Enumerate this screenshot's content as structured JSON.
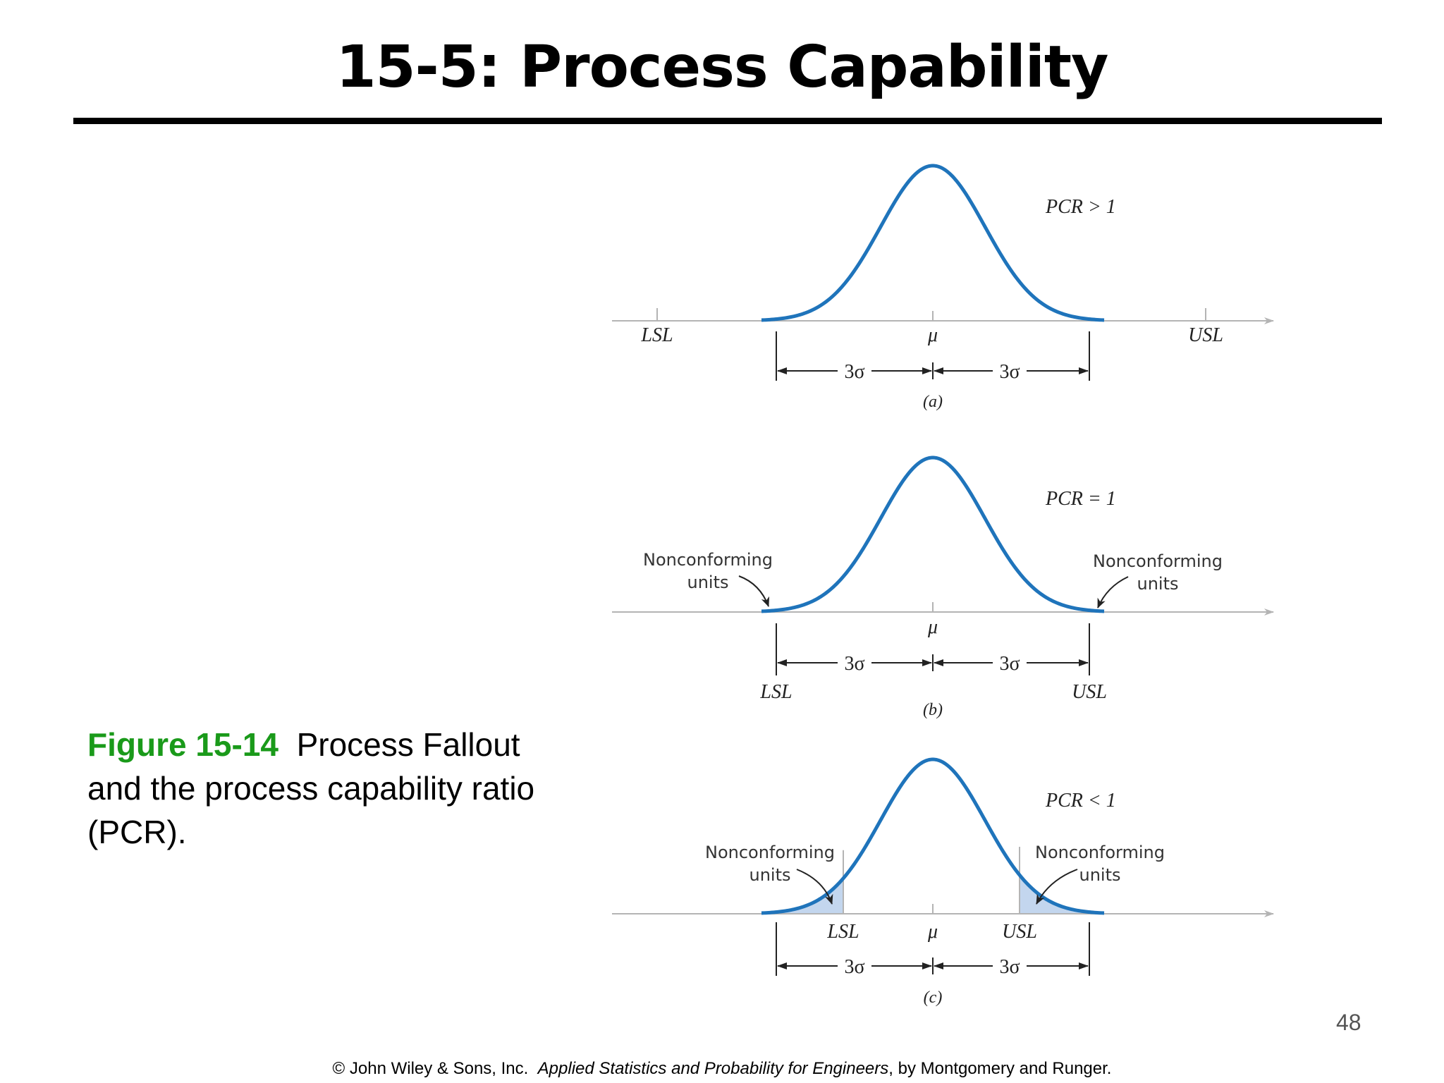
{
  "slide": {
    "title": "15-5: Process Capability",
    "caption_figure": "Figure 15-14",
    "caption_text": "Process Fallout and the process capability ratio (PCR).",
    "page_number": "48",
    "footer_copyright": "© John Wiley & Sons, Inc.",
    "footer_book": "Applied Statistics and Probability for Engineers",
    "footer_authors": ", by Montgomery and Runger."
  },
  "panels": [
    {
      "id": "a",
      "pcr_label": "PCR > 1",
      "lsl": "LSL",
      "usl": "USL",
      "mu": "μ",
      "sigma_left": "3σ",
      "sigma_right": "3σ",
      "panel_label": "(a)"
    },
    {
      "id": "b",
      "pcr_label": "PCR = 1",
      "lsl": "LSL",
      "usl": "USL",
      "mu": "μ",
      "sigma_left": "3σ",
      "sigma_right": "3σ",
      "panel_label": "(b)",
      "nc_left_line1": "Nonconforming",
      "nc_left_line2": "units",
      "nc_right_line1": "Nonconforming",
      "nc_right_line2": "units"
    },
    {
      "id": "c",
      "pcr_label": "PCR < 1",
      "lsl": "LSL",
      "usl": "USL",
      "mu": "μ",
      "sigma_left": "3σ",
      "sigma_right": "3σ",
      "panel_label": "(c)",
      "nc_left_line1": "Nonconforming",
      "nc_left_line2": "units",
      "nc_right_line1": "Nonconforming",
      "nc_right_line2": "units"
    }
  ],
  "colors": {
    "curve": "#1f74bb",
    "fill": "#c3d6ee",
    "axis": "#b4b4b4",
    "caption_accent": "#1a9a1a"
  }
}
